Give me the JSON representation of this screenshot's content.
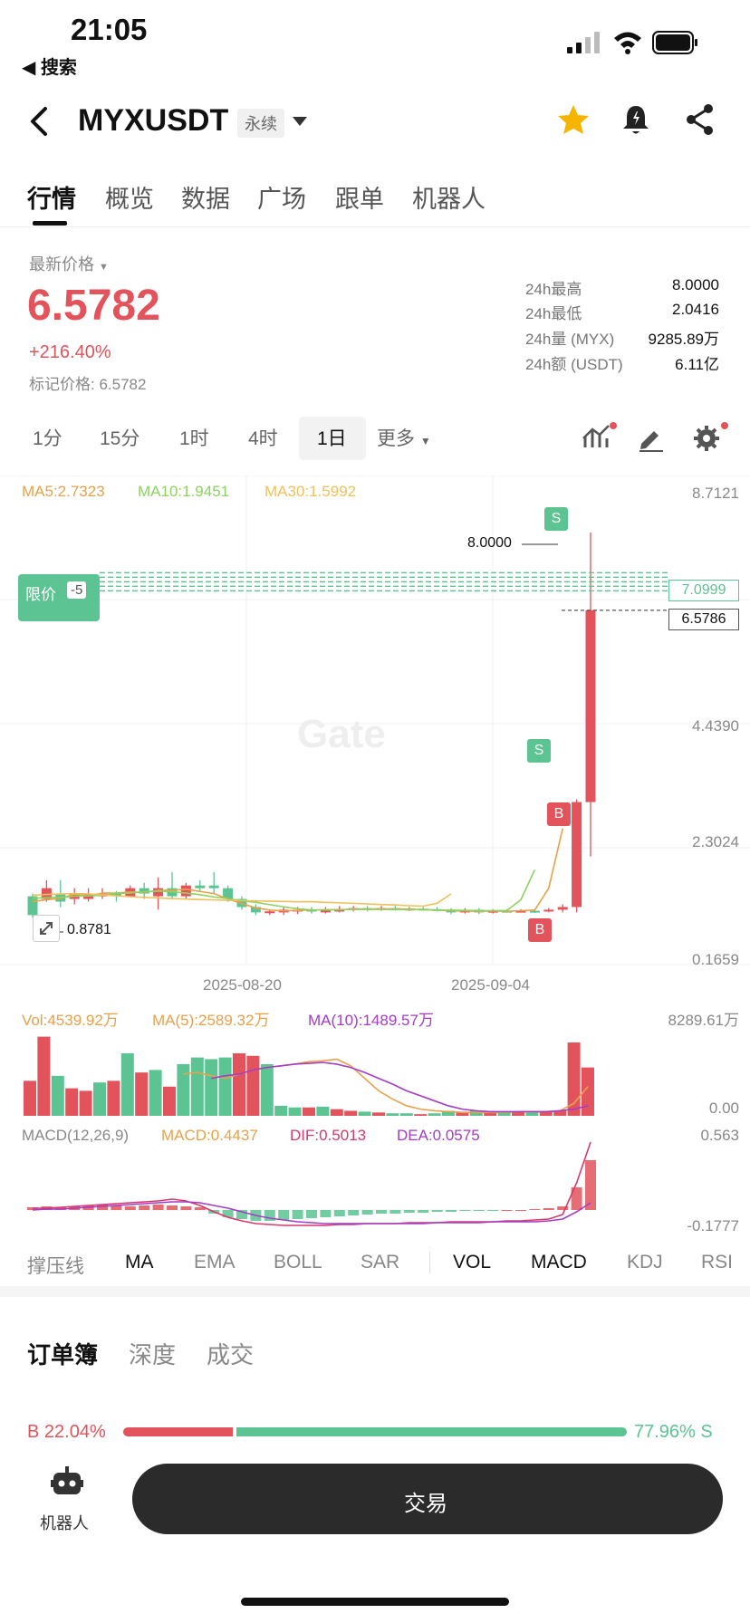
{
  "status_bar": {
    "time": "21:05",
    "back_label": "◀ 搜索"
  },
  "header": {
    "symbol": "MYXUSDT",
    "contract_type": "永续"
  },
  "tabs": [
    {
      "label": "行情",
      "active": true
    },
    {
      "label": "概览"
    },
    {
      "label": "数据"
    },
    {
      "label": "广场"
    },
    {
      "label": "跟单"
    },
    {
      "label": "机器人"
    }
  ],
  "price": {
    "latest_label": "最新价格",
    "latest": "6.5782",
    "change": "+216.40%",
    "mark_label": "标记价格: 6.5782"
  },
  "stats": [
    {
      "label": "24h最高",
      "value": "8.0000"
    },
    {
      "label": "24h最低",
      "value": "2.0416"
    },
    {
      "label": "24h量 (MYX)",
      "value": "9285.89万"
    },
    {
      "label": "24h额 (USDT)",
      "value": "6.11亿"
    }
  ],
  "timeframes": [
    {
      "label": "1分"
    },
    {
      "label": "15分"
    },
    {
      "label": "1时"
    },
    {
      "label": "4时"
    },
    {
      "label": "1日",
      "active": true
    },
    {
      "label": "更多"
    }
  ],
  "chart": {
    "ma_legend": {
      "ma5": "MA5:2.7323",
      "ma10": "MA10:1.9451",
      "ma30": "MA30:1.5992"
    },
    "y_ticks": [
      "8.7121",
      "4.4390",
      "2.3024",
      "0.1659"
    ],
    "x_ticks": [
      "2025-08-20",
      "2025-09-04"
    ],
    "high_marker": "8.0000",
    "low_marker": "0.8781",
    "limit_order": {
      "label": "限价",
      "count": "-5",
      "price": "7.0999"
    },
    "last_price_tag": "6.5786",
    "trade_marks": {
      "sell": "S",
      "buy": "B"
    },
    "watermark": "Gate"
  },
  "volume": {
    "vol_label": "Vol:4539.92万",
    "ma5_label": "MA(5):2589.32万",
    "ma10_label": "MA(10):1489.57万",
    "top_tick": "8289.61万",
    "bottom_tick": "0.00"
  },
  "macd": {
    "title": "MACD(12,26,9)",
    "macd_label": "MACD:0.4437",
    "dif_label": "DIF:0.5013",
    "dea_label": "DEA:0.0575",
    "top_tick": "0.563",
    "bottom_tick": "-0.1777"
  },
  "indicators": [
    {
      "label": "撑压线"
    },
    {
      "label": "MA",
      "active": true
    },
    {
      "label": "EMA"
    },
    {
      "label": "BOLL"
    },
    {
      "label": "SAR"
    },
    {
      "label": "VOL",
      "active": true
    },
    {
      "label": "MACD",
      "active": true
    },
    {
      "label": "KDJ"
    },
    {
      "label": "RSI"
    }
  ],
  "orderbook": {
    "tabs": [
      {
        "label": "订单簿",
        "active": true
      },
      {
        "label": "深度"
      },
      {
        "label": "成交"
      }
    ],
    "buy_pct": "22.04%",
    "sell_pct": "77.96%",
    "buy_letter": "B",
    "sell_letter": "S",
    "buy_ratio": 0.2204
  },
  "bottom": {
    "robot_label": "机器人",
    "trade_label": "交易"
  },
  "colors": {
    "up": "#e2535c",
    "down": "#5cc492",
    "gold": "#f5b400",
    "ma5": "#e8a14a",
    "ma10": "#8cd35f",
    "ma30": "#f0c05a",
    "purple": "#a43cc6"
  },
  "chart_data": {
    "type": "candlestick",
    "x": [
      "2025-08-20",
      "2025-09-04"
    ],
    "ylim": [
      0.1659,
      8.7121
    ],
    "latest": 6.5782,
    "high": 8.0,
    "low": 0.8781,
    "series": [
      {
        "name": "MA5",
        "last": 2.7323
      },
      {
        "name": "MA10",
        "last": 1.9451
      },
      {
        "name": "MA30",
        "last": 1.5992
      }
    ]
  }
}
